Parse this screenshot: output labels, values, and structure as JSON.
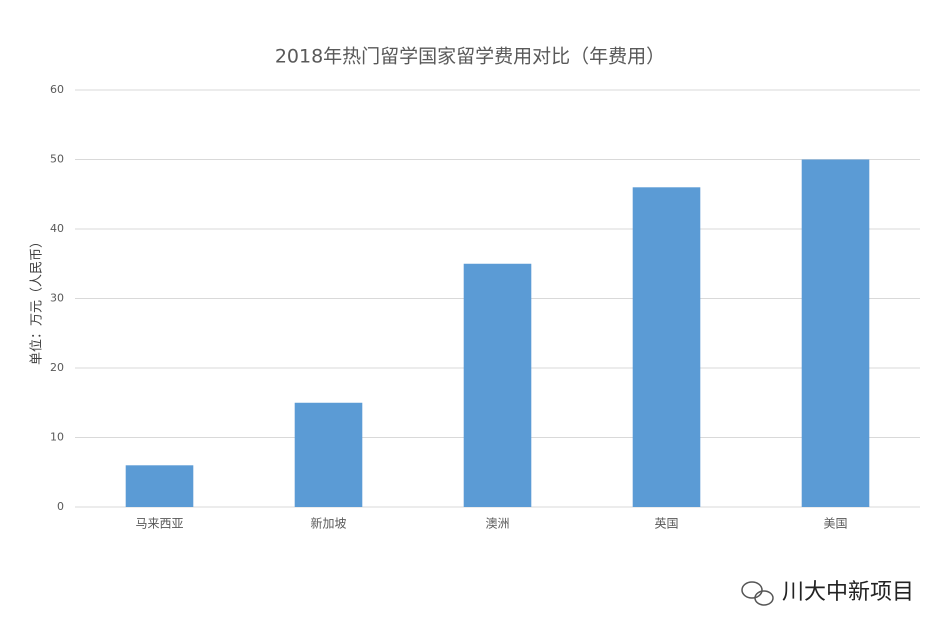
{
  "chart_data": {
    "type": "bar",
    "title": "2018年热门留学国家留学费用对比（年费用）",
    "y_label": "单位：万元（人民币）",
    "categories": [
      "马来西亚",
      "新加坡",
      "澳洲",
      "英国",
      "美国"
    ],
    "values": [
      6,
      15,
      35,
      46,
      50
    ],
    "color": "#5b9bd5",
    "ylim": [
      0,
      60
    ],
    "yticks": [
      0,
      10,
      20,
      30,
      40,
      50,
      60
    ],
    "grid": true
  },
  "watermark": "川大中新项目"
}
